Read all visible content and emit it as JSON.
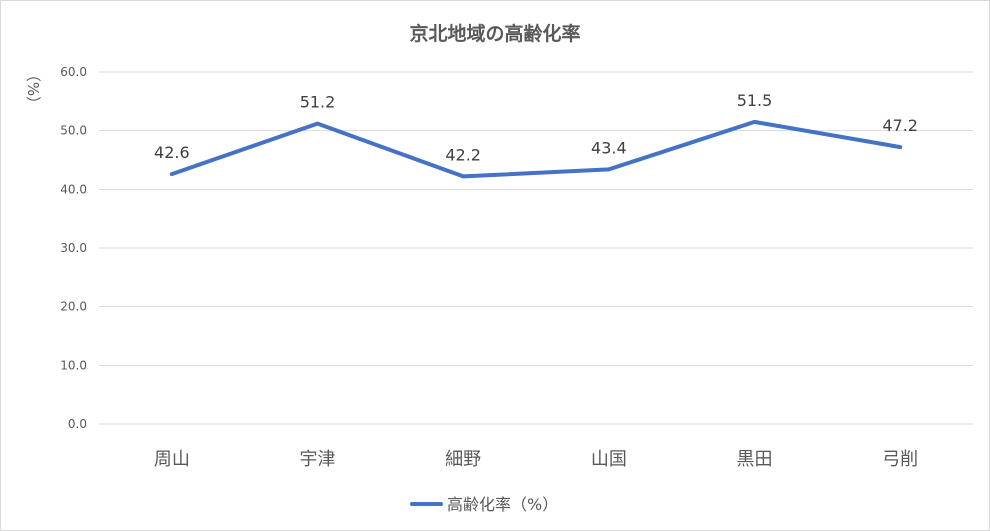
{
  "chart_data": {
    "type": "line",
    "title": "京北地域の高齢化率",
    "ylabel": "（%）",
    "xlabel": "",
    "categories": [
      "周山",
      "宇津",
      "細野",
      "山国",
      "黒田",
      "弓削"
    ],
    "series": [
      {
        "name": "高齢化率（%）",
        "values": [
          42.6,
          51.2,
          42.2,
          43.4,
          51.5,
          47.2
        ],
        "data_labels": [
          "42.6",
          "51.2",
          "42.2",
          "43.4",
          "51.5",
          "47.2"
        ],
        "color": "#4472c4"
      }
    ],
    "ylim": [
      0,
      60
    ],
    "yticks": [
      "0.0",
      "10.0",
      "20.0",
      "30.0",
      "40.0",
      "50.0",
      "60.0"
    ],
    "grid": true,
    "legend": "bottom"
  }
}
